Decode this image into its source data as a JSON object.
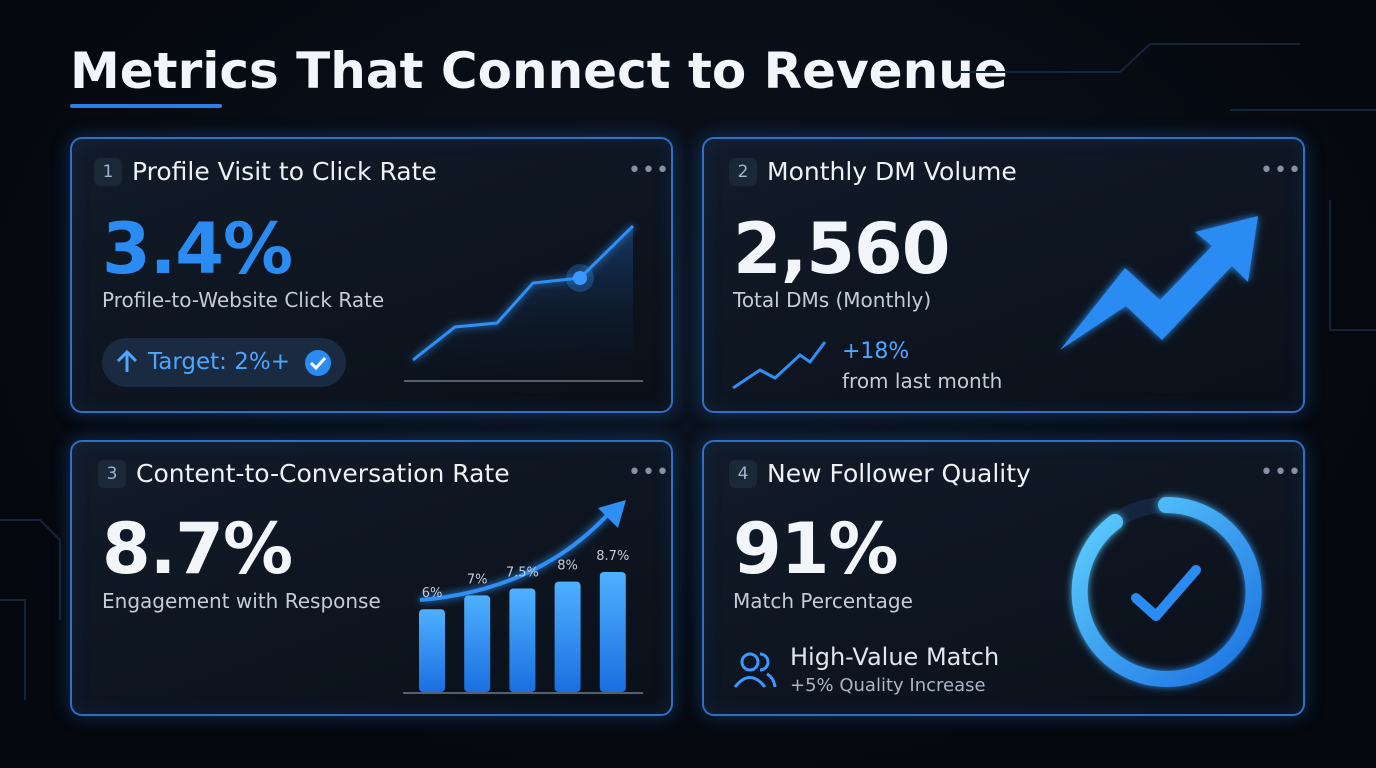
{
  "title": "Metrics That Connect to Revenue",
  "cards": [
    {
      "number": "1",
      "title": "Profile Visit to Click Rate",
      "value": "3.4%",
      "label": "Profile-to-Website Click Rate",
      "badge": "Target: 2%+"
    },
    {
      "number": "2",
      "title": "Monthly DM Volume",
      "value": "2,560",
      "label": "Total DMs (Monthly)",
      "change": "+18%",
      "change_note": "from last month"
    },
    {
      "number": "3",
      "title": "Content-to-Conversation Rate",
      "value": "8.7%",
      "label": "Engagement with Response",
      "chart": {
        "values": [
          6,
          7,
          7.5,
          8,
          8.7
        ],
        "value_labels": [
          "6%",
          "7%",
          "7.5%",
          "8%",
          "8.7%"
        ]
      }
    },
    {
      "number": "4",
      "title": "New Follower Quality",
      "value": "91%",
      "label": "Match Percentage",
      "highlight": "High-Value Match",
      "highlight_note": "+5% Quality Increase"
    }
  ]
}
